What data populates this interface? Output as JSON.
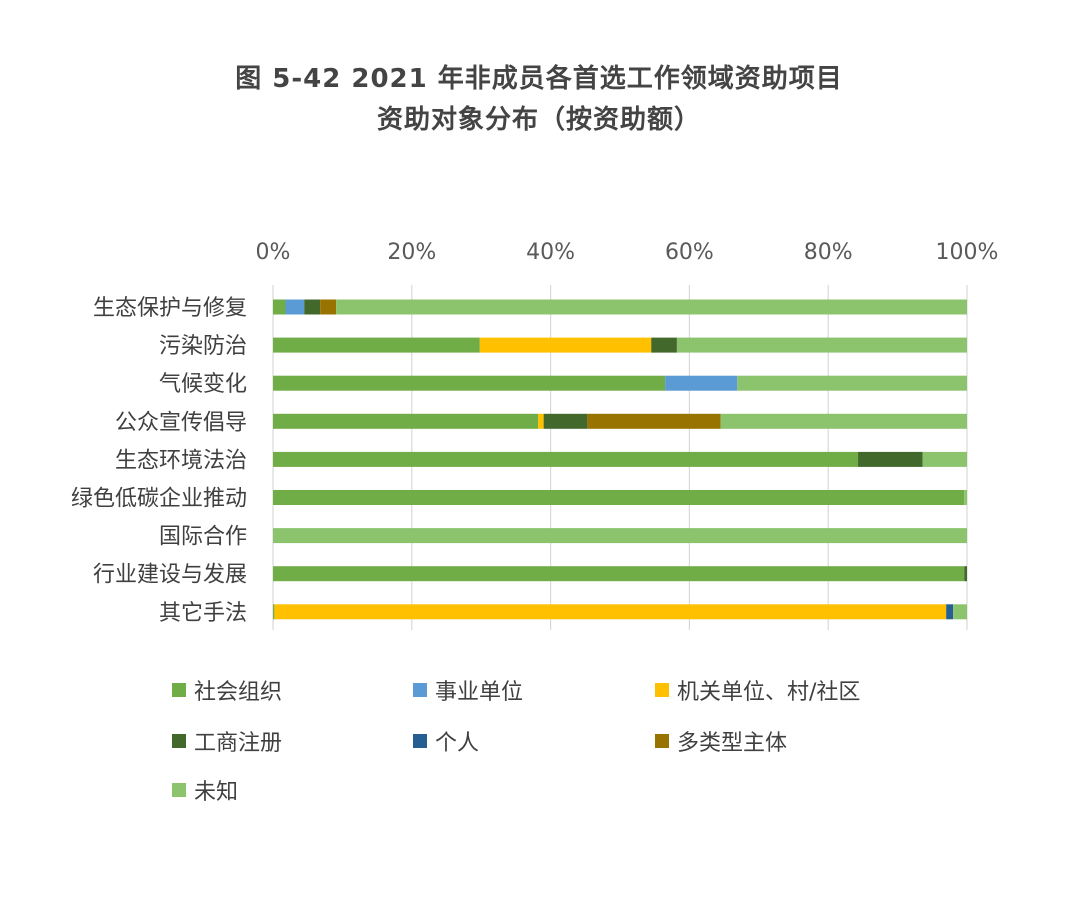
{
  "title_line1": "图 5-42 2021 年非成员各首选工作领域资助项目",
  "title_line2": "资助对象分布（按资助额）",
  "chart_data": {
    "type": "bar",
    "orientation": "horizontal",
    "stacked": true,
    "normalized": true,
    "title": "图 5-42 2021 年非成员各首选工作领域资助项目 资助对象分布（按资助额）",
    "x_axis_position": "top",
    "xlim": [
      0,
      100
    ],
    "x_ticks": [
      "0%",
      "20%",
      "40%",
      "60%",
      "80%",
      "100%"
    ],
    "x_tick_values": [
      0,
      20,
      40,
      60,
      80,
      100
    ],
    "grid": true,
    "categories": [
      "生态保护与修复",
      "污染防治",
      "气候变化",
      "公众宣传倡导",
      "生态环境法治",
      "绿色低碳企业推动",
      "国际合作",
      "行业建设与发展",
      "其它手法"
    ],
    "series": [
      {
        "name": "社会组织",
        "color": "#70ad47",
        "values": [
          1.8,
          29.8,
          56.5,
          38.2,
          84.3,
          99.6,
          0,
          99.6,
          0.2
        ]
      },
      {
        "name": "事业单位",
        "color": "#5b9bd5",
        "values": [
          2.7,
          0,
          10.4,
          0,
          0,
          0,
          0,
          0,
          0
        ]
      },
      {
        "name": "机关单位、村/社区",
        "color": "#ffc000",
        "values": [
          0,
          24.7,
          0,
          0.8,
          0,
          0,
          0,
          0,
          96.8
        ]
      },
      {
        "name": "工商注册",
        "color": "#43682b",
        "values": [
          2.3,
          3.7,
          0,
          6.3,
          9.3,
          0,
          0,
          0.4,
          0
        ]
      },
      {
        "name": "个人",
        "color": "#255e91",
        "values": [
          0,
          0,
          0,
          0,
          0,
          0,
          0,
          0,
          1.0
        ]
      },
      {
        "name": "多类型主体",
        "color": "#997300",
        "values": [
          2.3,
          0,
          0,
          19.2,
          0,
          0,
          0,
          0,
          0
        ]
      },
      {
        "name": "未知",
        "color": "#8cc46e",
        "values": [
          90.9,
          41.8,
          33.1,
          35.5,
          6.4,
          0.4,
          100,
          0,
          2.0
        ]
      }
    ],
    "legend": "bottom"
  }
}
